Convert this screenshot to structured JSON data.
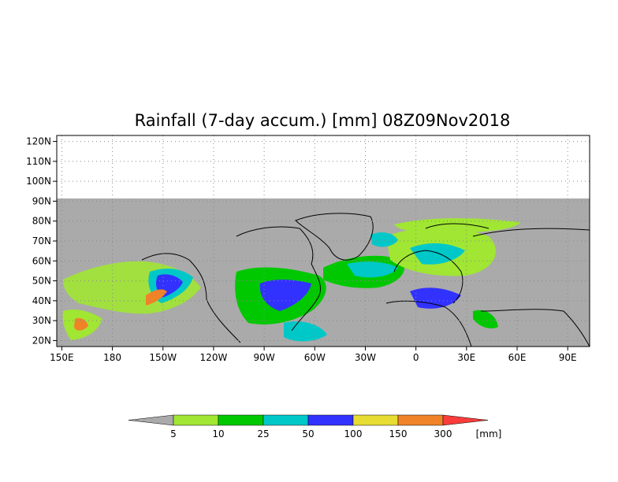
{
  "map": {
    "title": "Rainfall (7-day accum.) [mm] 08Z09Nov2018",
    "lat_labels": [
      "120N",
      "110N",
      "100N",
      "90N",
      "80N",
      "70N",
      "60N",
      "50N",
      "40N",
      "30N",
      "20N"
    ],
    "lon_labels": [
      "150E",
      "180",
      "150W",
      "120W",
      "90W",
      "60W",
      "30W",
      "0",
      "30E",
      "60E",
      "90E"
    ],
    "lat_values": [
      120,
      110,
      100,
      90,
      80,
      70,
      60,
      50,
      40,
      30,
      20
    ],
    "lon_values": [
      150,
      180,
      210,
      240,
      270,
      300,
      330,
      360,
      390,
      420,
      450
    ],
    "lat_range": [
      17,
      123
    ],
    "lon_range": [
      147,
      463
    ],
    "no_data_color": "#aaaaaa",
    "no_data_above_lat": 90,
    "gridlines": "dotted"
  },
  "legend": {
    "unit": "[mm]",
    "thresholds": [
      "5",
      "10",
      "25",
      "50",
      "100",
      "150",
      "300"
    ],
    "colors": [
      "#a0e632",
      "#00c800",
      "#00c8c8",
      "#3232ff",
      "#e6dc32",
      "#f08228",
      "#fa3c3c"
    ],
    "below_color": "#aaaaaa"
  }
}
